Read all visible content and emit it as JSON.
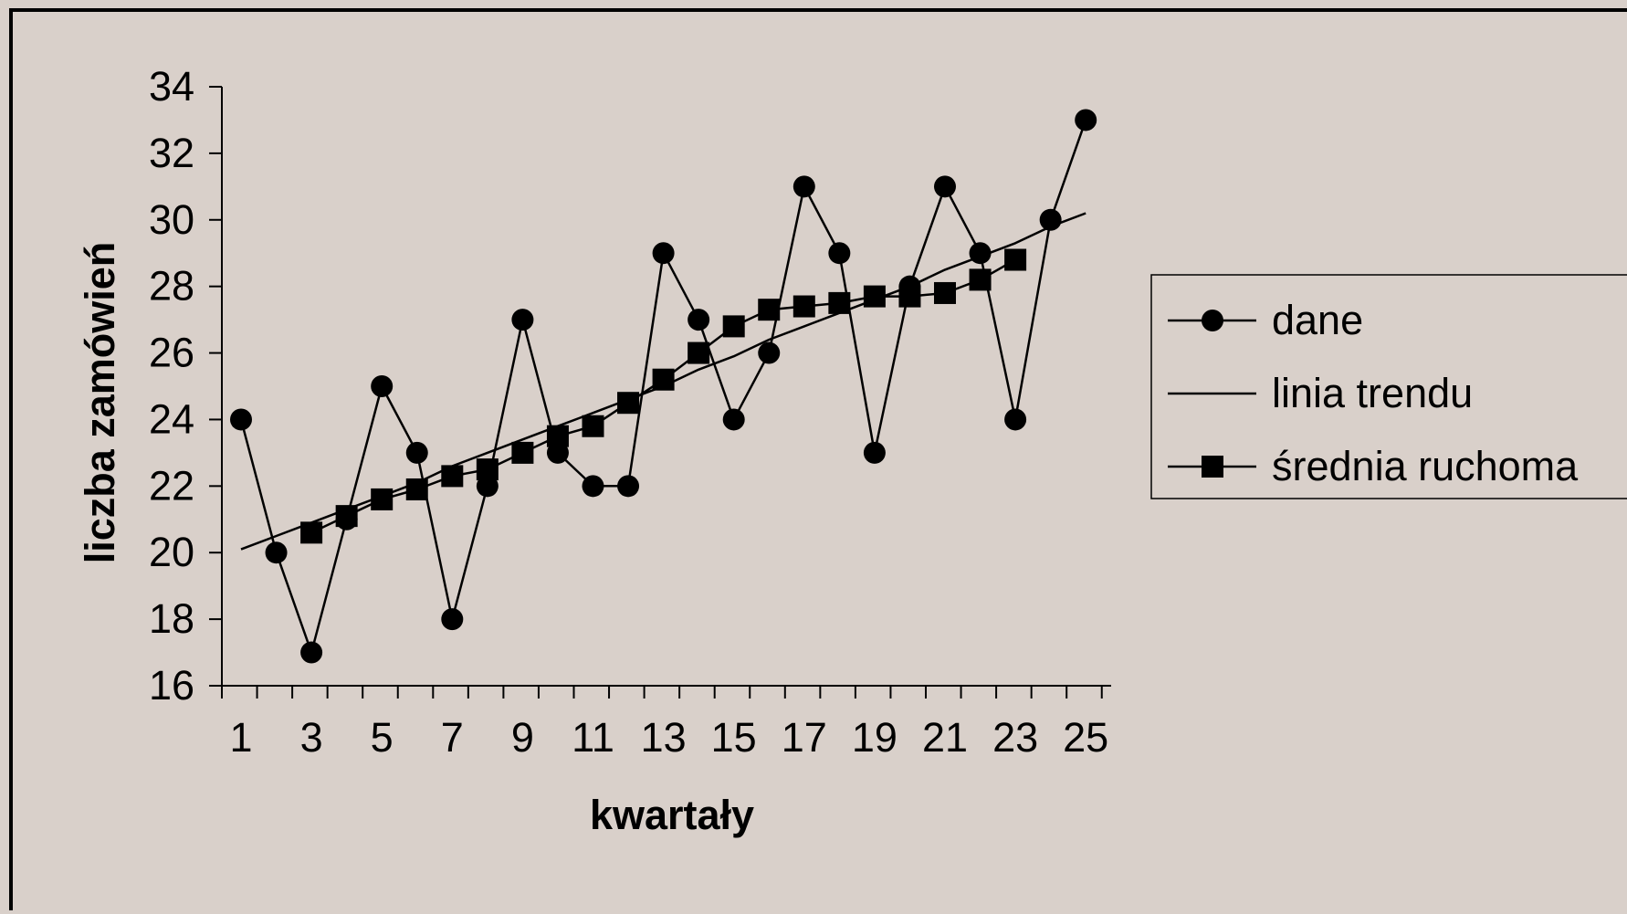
{
  "chart_data": {
    "type": "line",
    "xlabel": "kwartały",
    "ylabel": "liczba zamówień",
    "x": [
      1,
      2,
      3,
      4,
      5,
      6,
      7,
      8,
      9,
      10,
      11,
      12,
      13,
      14,
      15,
      16,
      17,
      18,
      19,
      20,
      21,
      22,
      23,
      24,
      25
    ],
    "x_tick_labels": [
      "1",
      "3",
      "5",
      "7",
      "9",
      "11",
      "13",
      "15",
      "17",
      "19",
      "21",
      "23",
      "25"
    ],
    "y_tick_labels": [
      "16",
      "18",
      "20",
      "22",
      "24",
      "26",
      "28",
      "30",
      "32",
      "34"
    ],
    "ylim": [
      16,
      34
    ],
    "y_step": 2,
    "grid": false,
    "legend_position": "right",
    "series": [
      {
        "name": "dane",
        "marker": "circle",
        "x": [
          1,
          2,
          3,
          4,
          5,
          6,
          7,
          8,
          9,
          10,
          11,
          12,
          13,
          14,
          15,
          16,
          17,
          18,
          19,
          20,
          21,
          22,
          23,
          24,
          25
        ],
        "values": [
          24,
          20,
          17,
          21,
          25,
          23,
          18,
          22,
          27,
          23,
          22,
          22,
          29,
          27,
          24,
          26,
          31,
          29,
          23,
          28,
          31,
          29,
          24,
          30,
          33
        ]
      },
      {
        "name": "linia trendu",
        "marker": "none",
        "x": [
          1,
          2,
          3,
          4,
          5,
          6,
          7,
          8,
          9,
          10,
          11,
          12,
          13,
          14,
          15,
          16,
          17,
          18,
          19,
          20,
          21,
          22,
          23,
          24,
          25
        ],
        "values": [
          20.1,
          20.5,
          20.9,
          21.3,
          21.7,
          22.1,
          22.6,
          23.0,
          23.4,
          23.8,
          24.2,
          24.6,
          25.0,
          25.5,
          25.9,
          26.4,
          26.8,
          27.2,
          27.6,
          28.0,
          28.5,
          28.9,
          29.3,
          29.8,
          30.2
        ]
      },
      {
        "name": "średnia ruchoma",
        "marker": "square",
        "x": [
          3,
          4,
          5,
          6,
          7,
          8,
          9,
          10,
          11,
          12,
          13,
          14,
          15,
          16,
          17,
          18,
          19,
          20,
          21,
          22,
          23
        ],
        "values": [
          20.6,
          21.1,
          21.6,
          21.9,
          22.3,
          22.5,
          23.0,
          23.5,
          23.8,
          24.5,
          25.2,
          26.0,
          26.8,
          27.3,
          27.4,
          27.5,
          27.7,
          27.7,
          27.8,
          28.2,
          28.8
        ]
      }
    ]
  }
}
